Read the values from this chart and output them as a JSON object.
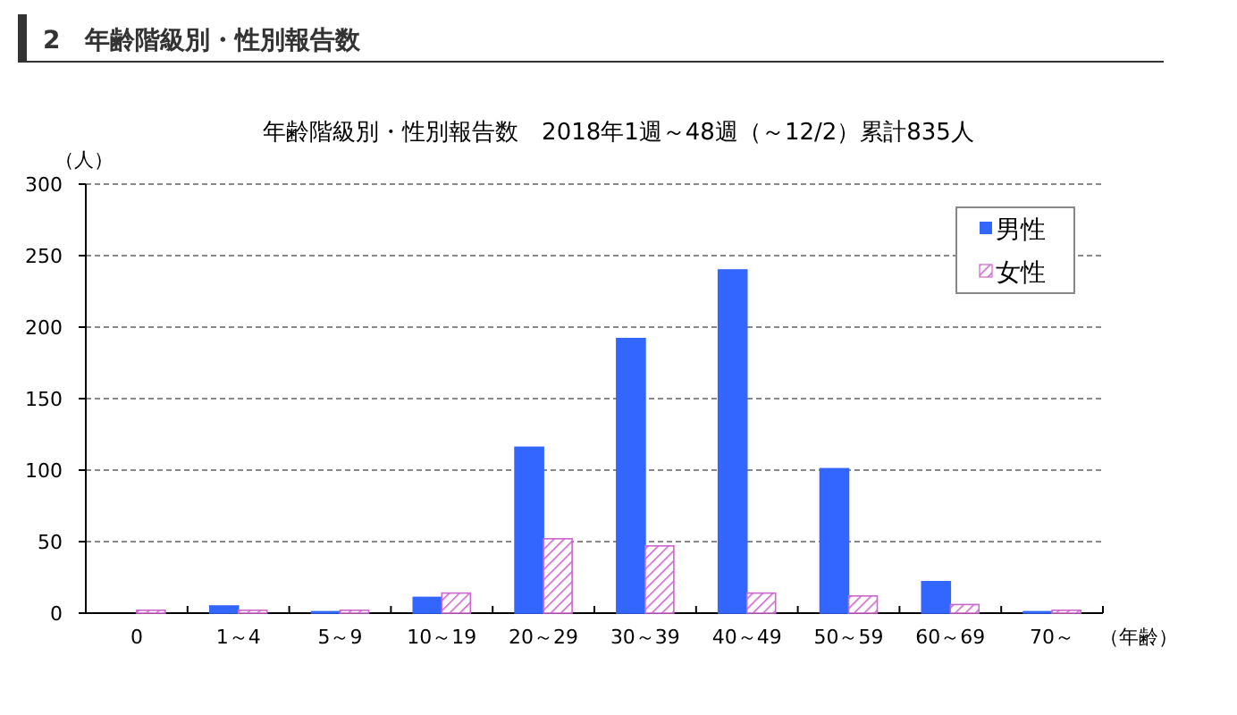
{
  "chart_data": {
    "type": "bar",
    "title": "2　年齢階級別・性別報告数",
    "subtitle": "年齢階級別・性別報告数　2018年1週～48週（～12/2）累計835人",
    "ylabel": "（人）",
    "xlabel": "（年齢）",
    "categories": [
      "0",
      "1～4",
      "5～9",
      "10～19",
      "20～29",
      "30～39",
      "40～49",
      "50～59",
      "60～69",
      "70～"
    ],
    "series": [
      {
        "name": "男性",
        "color": "#3366ff",
        "values": [
          0,
          5,
          1,
          11,
          116,
          192,
          240,
          101,
          22,
          1
        ]
      },
      {
        "name": "女性",
        "color": "#cc66cc",
        "values": [
          2,
          2,
          2,
          14,
          52,
          47,
          14,
          12,
          6,
          2
        ]
      }
    ],
    "ylim": [
      0,
      300
    ],
    "yticks": [
      0,
      50,
      100,
      150,
      200,
      250,
      300
    ],
    "grid": "y",
    "legend": "top right"
  }
}
